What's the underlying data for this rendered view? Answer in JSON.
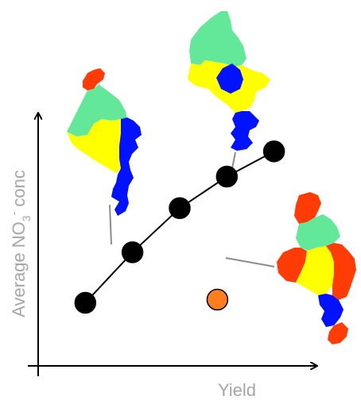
{
  "chart_data": {
    "type": "scatter",
    "xlabel": "Yield",
    "ylabel": "Average NO3- conc",
    "ylabel_parts": {
      "prefix": "Average NO",
      "sub": "3",
      "sup": "-",
      "suffix": " conc"
    },
    "series": [
      {
        "values": [
          [
            1,
            1.0
          ],
          [
            2,
            1.8
          ],
          [
            3,
            2.5
          ],
          [
            4,
            3.0
          ],
          [
            5,
            3.4
          ]
        ],
        "color": "#000000",
        "connected": true
      },
      {
        "values": [
          [
            3.8,
            1.05
          ]
        ],
        "color": "#ff7f1e",
        "connected": false
      }
    ]
  },
  "colors": {
    "red": "#ff3b06",
    "mint": "#63e89a",
    "yellow": "#ffff00",
    "blue": "#0012ff",
    "orange": "#ff7f1e",
    "leader": "#8c8c8c",
    "axis": "#000000"
  }
}
